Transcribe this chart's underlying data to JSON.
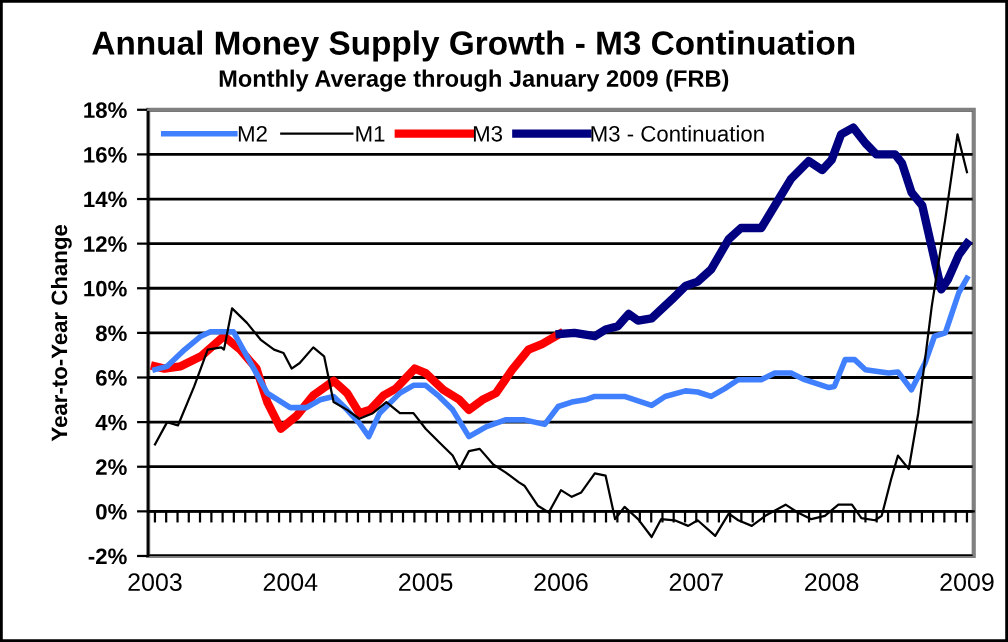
{
  "chart_data": {
    "type": "line",
    "title": "Annual Money Supply Growth - M3 Continuation",
    "subtitle": "Monthly Average through January 2009 (FRB)",
    "ylabel": "Year-to-Year Change",
    "xlim": [
      2002.95,
      2009.05
    ],
    "ylim": [
      -2,
      18
    ],
    "yticks": [
      {
        "value": -2,
        "label": "-2%"
      },
      {
        "value": 0,
        "label": "0%"
      },
      {
        "value": 2,
        "label": "2%"
      },
      {
        "value": 4,
        "label": "4%"
      },
      {
        "value": 6,
        "label": "6%"
      },
      {
        "value": 8,
        "label": "8%"
      },
      {
        "value": 10,
        "label": "10%"
      },
      {
        "value": 12,
        "label": "12%"
      },
      {
        "value": 14,
        "label": "14%"
      },
      {
        "value": 16,
        "label": "16%"
      },
      {
        "value": 18,
        "label": "18%"
      }
    ],
    "xticks": [
      2003,
      2004,
      2005,
      2006,
      2007,
      2008,
      2009,
      {
        "value": 2003.083,
        "label": null
      },
      {
        "value": 2003.167,
        "label": null
      },
      {
        "value": 2003.25,
        "label": null
      },
      {
        "value": 2003.333,
        "label": null
      },
      {
        "value": 2003.417,
        "label": null
      },
      {
        "value": 2003.5,
        "label": null
      },
      {
        "value": 2003.583,
        "label": null
      },
      {
        "value": 2003.667,
        "label": null
      },
      {
        "value": 2003.75,
        "label": null
      },
      {
        "value": 2003.833,
        "label": null
      },
      {
        "value": 2003.917,
        "label": null
      },
      {
        "value": 2004.083,
        "label": null
      },
      {
        "value": 2004.167,
        "label": null
      },
      {
        "value": 2004.25,
        "label": null
      },
      {
        "value": 2004.333,
        "label": null
      },
      {
        "value": 2004.417,
        "label": null
      },
      {
        "value": 2004.5,
        "label": null
      },
      {
        "value": 2004.583,
        "label": null
      },
      {
        "value": 2004.667,
        "label": null
      },
      {
        "value": 2004.75,
        "label": null
      },
      {
        "value": 2004.833,
        "label": null
      },
      {
        "value": 2004.917,
        "label": null
      },
      {
        "value": 2005.083,
        "label": null
      },
      {
        "value": 2005.167,
        "label": null
      },
      {
        "value": 2005.25,
        "label": null
      },
      {
        "value": 2005.333,
        "label": null
      },
      {
        "value": 2005.417,
        "label": null
      },
      {
        "value": 2005.5,
        "label": null
      },
      {
        "value": 2005.583,
        "label": null
      },
      {
        "value": 2005.667,
        "label": null
      },
      {
        "value": 2005.75,
        "label": null
      },
      {
        "value": 2005.833,
        "label": null
      },
      {
        "value": 2005.917,
        "label": null
      },
      {
        "value": 2006.083,
        "label": null
      },
      {
        "value": 2006.167,
        "label": null
      },
      {
        "value": 2006.25,
        "label": null
      },
      {
        "value": 2006.333,
        "label": null
      },
      {
        "value": 2006.417,
        "label": null
      },
      {
        "value": 2006.5,
        "label": null
      },
      {
        "value": 2006.583,
        "label": null
      },
      {
        "value": 2006.667,
        "label": null
      },
      {
        "value": 2006.75,
        "label": null
      },
      {
        "value": 2006.833,
        "label": null
      },
      {
        "value": 2006.917,
        "label": null
      },
      {
        "value": 2007.083,
        "label": null
      },
      {
        "value": 2007.167,
        "label": null
      },
      {
        "value": 2007.25,
        "label": null
      },
      {
        "value": 2007.333,
        "label": null
      },
      {
        "value": 2007.417,
        "label": null
      },
      {
        "value": 2007.5,
        "label": null
      },
      {
        "value": 2007.583,
        "label": null
      },
      {
        "value": 2007.667,
        "label": null
      },
      {
        "value": 2007.75,
        "label": null
      },
      {
        "value": 2007.833,
        "label": null
      },
      {
        "value": 2007.917,
        "label": null
      },
      {
        "value": 2008.083,
        "label": null
      },
      {
        "value": 2008.167,
        "label": null
      },
      {
        "value": 2008.25,
        "label": null
      },
      {
        "value": 2008.333,
        "label": null
      },
      {
        "value": 2008.417,
        "label": null
      },
      {
        "value": 2008.5,
        "label": null
      },
      {
        "value": 2008.583,
        "label": null
      },
      {
        "value": 2008.667,
        "label": null
      },
      {
        "value": 2008.75,
        "label": null
      },
      {
        "value": 2008.833,
        "label": null
      },
      {
        "value": 2008.917,
        "label": null
      }
    ],
    "grid": "y",
    "legend": "top left",
    "marker": "none",
    "line_style": "solid",
    "series": [
      {
        "name": "M2",
        "color": "#4080ff",
        "x": [
          2003.0,
          2003.09,
          2003.22,
          2003.34,
          2003.41,
          2003.58,
          2003.68,
          2003.83,
          2004.0,
          2004.12,
          2004.22,
          2004.32,
          2004.42,
          2004.51,
          2004.58,
          2004.66,
          2004.81,
          2004.91,
          2005.0,
          2005.1,
          2005.2,
          2005.32,
          2005.45,
          2005.59,
          2005.69,
          2005.73,
          2005.88,
          2005.98,
          2006.08,
          2006.18,
          2006.25,
          2006.47,
          2006.67,
          2006.77,
          2006.92,
          2007.01,
          2007.11,
          2007.21,
          2007.31,
          2007.48,
          2007.58,
          2007.7,
          2007.8,
          2007.98,
          2008.02,
          2008.1,
          2008.17,
          2008.25,
          2008.42,
          2008.49,
          2008.59,
          2008.69,
          2008.76,
          2008.84,
          2008.94,
          2009.0
        ],
        "values": [
          6.35,
          6.5,
          7.25,
          7.85,
          8.05,
          8.05,
          6.95,
          5.3,
          4.65,
          4.65,
          5.0,
          5.15,
          4.55,
          3.95,
          3.35,
          4.4,
          5.3,
          5.65,
          5.65,
          5.15,
          4.55,
          3.35,
          3.8,
          4.1,
          4.1,
          4.1,
          3.9,
          4.7,
          4.9,
          5.0,
          5.15,
          5.15,
          4.75,
          5.15,
          5.4,
          5.35,
          5.15,
          5.5,
          5.9,
          5.9,
          6.2,
          6.2,
          5.9,
          5.55,
          5.6,
          6.8,
          6.8,
          6.35,
          6.2,
          6.25,
          5.45,
          6.65,
          7.85,
          8.0,
          9.8,
          10.45
        ]
      },
      {
        "name": "M1",
        "color": "#000000",
        "x": [
          2003.0,
          2003.09,
          2003.17,
          2003.29,
          2003.39,
          2003.49,
          2003.51,
          2003.57,
          2003.68,
          2003.78,
          2003.88,
          2003.95,
          2004.01,
          2004.07,
          2004.17,
          2004.25,
          2004.32,
          2004.42,
          2004.51,
          2004.61,
          2004.71,
          2004.81,
          2004.91,
          2005.0,
          2005.1,
          2005.2,
          2005.25,
          2005.32,
          2005.4,
          2005.5,
          2005.59,
          2005.69,
          2005.73,
          2005.83,
          2005.91,
          2006.0,
          2006.08,
          2006.15,
          2006.25,
          2006.33,
          2006.4,
          2006.47,
          2006.57,
          2006.67,
          2006.74,
          2006.84,
          2006.94,
          2007.01,
          2007.14,
          2007.24,
          2007.31,
          2007.41,
          2007.51,
          2007.66,
          2007.75,
          2007.85,
          2007.95,
          2008.05,
          2008.15,
          2008.22,
          2008.32,
          2008.37,
          2008.44,
          2008.49,
          2008.57,
          2008.64,
          2008.74,
          2008.84,
          2008.93,
          2009.0
        ],
        "values": [
          3.0,
          4.0,
          3.85,
          5.6,
          7.25,
          7.35,
          7.25,
          9.1,
          8.45,
          7.7,
          7.25,
          7.1,
          6.4,
          6.65,
          7.35,
          6.95,
          4.9,
          4.55,
          4.15,
          4.4,
          4.9,
          4.4,
          4.4,
          3.7,
          3.1,
          2.5,
          1.9,
          2.7,
          2.8,
          2.1,
          1.75,
          1.3,
          1.15,
          0.25,
          -0.05,
          0.95,
          0.65,
          0.85,
          1.7,
          1.6,
          -0.35,
          0.2,
          -0.35,
          -1.15,
          -0.35,
          -0.4,
          -0.65,
          -0.4,
          -1.1,
          -0.1,
          -0.4,
          -0.65,
          -0.2,
          0.3,
          -0.05,
          -0.35,
          -0.2,
          0.3,
          0.3,
          -0.3,
          -0.4,
          -0.2,
          1.45,
          2.5,
          1.9,
          4.4,
          9.2,
          13.1,
          16.9,
          15.2
        ]
      },
      {
        "name": "M3",
        "color": "#ff0000",
        "x": [
          2003.0,
          2003.07,
          2003.19,
          2003.34,
          2003.51,
          2003.63,
          2003.75,
          2003.83,
          2003.93,
          2004.05,
          2004.17,
          2004.32,
          2004.42,
          2004.51,
          2004.59,
          2004.69,
          2004.78,
          2004.92,
          2005.0,
          2005.13,
          2005.25,
          2005.32,
          2005.42,
          2005.52,
          2005.64,
          2005.76,
          2005.86,
          2005.99
        ],
        "values": [
          6.5,
          6.4,
          6.5,
          6.95,
          7.85,
          7.25,
          6.4,
          4.9,
          3.7,
          4.3,
          5.2,
          5.85,
          5.3,
          4.4,
          4.55,
          5.2,
          5.5,
          6.4,
          6.2,
          5.45,
          5.0,
          4.55,
          5.0,
          5.3,
          6.35,
          7.25,
          7.5,
          7.95
        ]
      },
      {
        "name": "M3 - Continuation",
        "color": "#000080",
        "x": [
          2005.99,
          2006.1,
          2006.25,
          2006.33,
          2006.42,
          2006.5,
          2006.57,
          2006.67,
          2006.82,
          2006.92,
          2007.01,
          2007.11,
          2007.24,
          2007.33,
          2007.48,
          2007.61,
          2007.7,
          2007.83,
          2007.93,
          2008.0,
          2008.07,
          2008.16,
          2008.25,
          2008.33,
          2008.47,
          2008.52,
          2008.59,
          2008.67,
          2008.81,
          2008.86,
          2008.94,
          2009.0
        ],
        "values": [
          7.95,
          8.0,
          7.85,
          8.15,
          8.3,
          8.85,
          8.55,
          8.65,
          9.5,
          10.1,
          10.3,
          10.85,
          12.2,
          12.7,
          12.7,
          14.0,
          14.9,
          15.7,
          15.3,
          15.75,
          16.9,
          17.2,
          16.5,
          16.0,
          16.0,
          15.6,
          14.3,
          13.7,
          9.95,
          10.4,
          11.5,
          12.0
        ]
      }
    ]
  }
}
